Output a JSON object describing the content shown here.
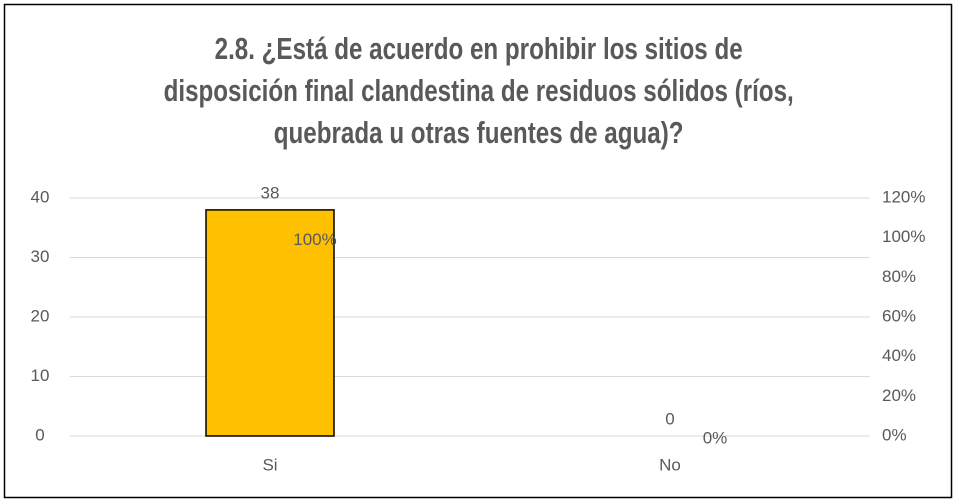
{
  "chart_data": {
    "type": "bar",
    "title": "2.8. ¿Está de acuerdo en prohibir los sitios de disposición final clandestina de residuos sólidos (ríos, quebrada u otras fuentes de agua)?",
    "categories": [
      "Si",
      "No"
    ],
    "series": [
      {
        "color": "#ffc000",
        "values": [
          38,
          0
        ]
      },
      {
        "values": [
          100,
          0
        ],
        "value_labels": [
          "100%",
          "0%"
        ],
        "axis": "y2"
      }
    ],
    "ylim": [
      0,
      40
    ],
    "yticks": [
      0,
      10,
      20,
      30,
      40
    ],
    "y2lim": [
      0,
      120
    ],
    "y2ticks": [
      {
        "value": 0,
        "label": "0%"
      },
      {
        "value": 20,
        "label": "20%"
      },
      {
        "value": 40,
        "label": "40%"
      },
      {
        "value": 60,
        "label": "60%"
      },
      {
        "value": 80,
        "label": "80%"
      },
      {
        "value": 100,
        "label": "100%"
      },
      {
        "value": 120,
        "label": "120%"
      }
    ],
    "grid": true
  }
}
